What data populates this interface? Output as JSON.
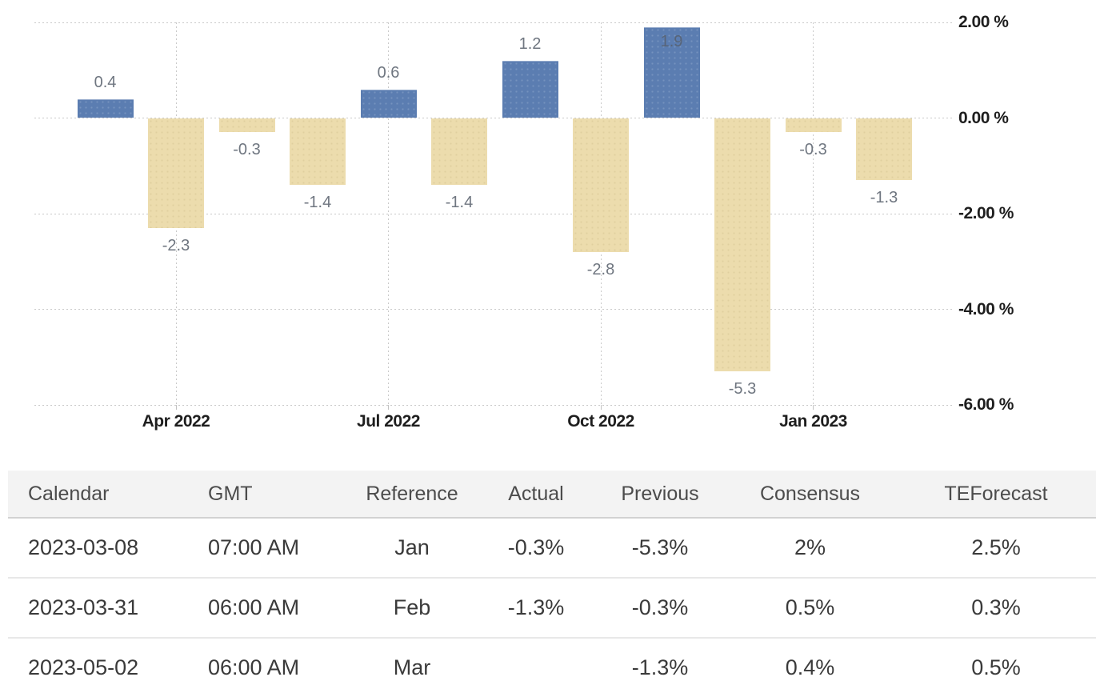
{
  "chart_data": {
    "type": "bar",
    "title": "",
    "xlabel": "",
    "ylabel": "",
    "legend": "none",
    "grid": "dotted",
    "values": [
      0.4,
      -2.3,
      -0.3,
      -1.4,
      0.6,
      -1.4,
      1.2,
      -2.8,
      1.9,
      -5.3,
      -0.3,
      -1.3
    ],
    "bar_labels": [
      "0.4",
      "-2.3",
      "-0.3",
      "-1.4",
      "0.6",
      "-1.4",
      "1.2",
      "-2.8",
      "1.9",
      "-5.3",
      "-0.3",
      "-1.3"
    ],
    "x_ticks": [
      {
        "slot": 1,
        "label": "Apr 2022"
      },
      {
        "slot": 4,
        "label": "Jul 2022"
      },
      {
        "slot": 7,
        "label": "Oct 2022"
      },
      {
        "slot": 10,
        "label": "Jan 2023"
      }
    ],
    "y_ticks": [
      {
        "value": 2,
        "label": "2.00 %"
      },
      {
        "value": 0,
        "label": "0.00 %"
      },
      {
        "value": -2,
        "label": "-2.00 %"
      },
      {
        "value": -4,
        "label": "-4.00 %"
      },
      {
        "value": -6,
        "label": "-6.00 %"
      }
    ],
    "ylim": [
      -6.3,
      2.0
    ],
    "colors": {
      "positive_bar": "#5b7db1",
      "negative_bar": "#ecdcad",
      "grid_line": "#c9c9c9",
      "axis_label": "#1e1e1e",
      "bar_value_label": "#6f7680"
    }
  },
  "table": {
    "headers": [
      "Calendar",
      "GMT",
      "Reference",
      "Actual",
      "Previous",
      "Consensus",
      "TEForecast"
    ],
    "rows": [
      [
        "2023-03-08",
        "07:00 AM",
        "Jan",
        "-0.3%",
        "-5.3%",
        "2%",
        "2.5%"
      ],
      [
        "2023-03-31",
        "06:00 AM",
        "Feb",
        "-1.3%",
        "-0.3%",
        "0.5%",
        "0.3%"
      ],
      [
        "2023-05-02",
        "06:00 AM",
        "Mar",
        "",
        "-1.3%",
        "0.4%",
        "0.5%"
      ]
    ]
  }
}
